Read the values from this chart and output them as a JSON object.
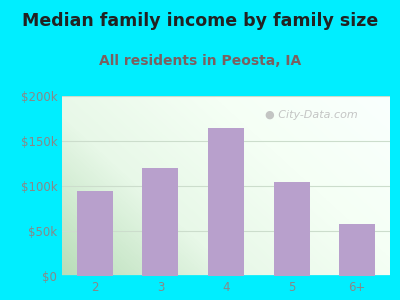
{
  "title": "Median family income by family size",
  "subtitle": "All residents in Peosta, IA",
  "categories": [
    "2",
    "3",
    "4",
    "5",
    "6+"
  ],
  "values": [
    95000,
    120000,
    165000,
    105000,
    58000
  ],
  "bar_color": "#b8a0cc",
  "title_color": "#222222",
  "subtitle_color": "#7a6060",
  "background_outer": "#00eeff",
  "ylim": [
    0,
    200000
  ],
  "yticks": [
    0,
    50000,
    100000,
    150000,
    200000
  ],
  "ytick_labels": [
    "$0",
    "$50k",
    "$100k",
    "$150k",
    "$200k"
  ],
  "title_fontsize": 12.5,
  "subtitle_fontsize": 10,
  "tick_fontsize": 8.5,
  "watermark_text": "City-Data.com",
  "watermark_color": "#bbbbbb",
  "grid_color": "#ccddcc",
  "bg_gradient_left": "#c8e6c9",
  "bg_gradient_right": "#f0fff0"
}
